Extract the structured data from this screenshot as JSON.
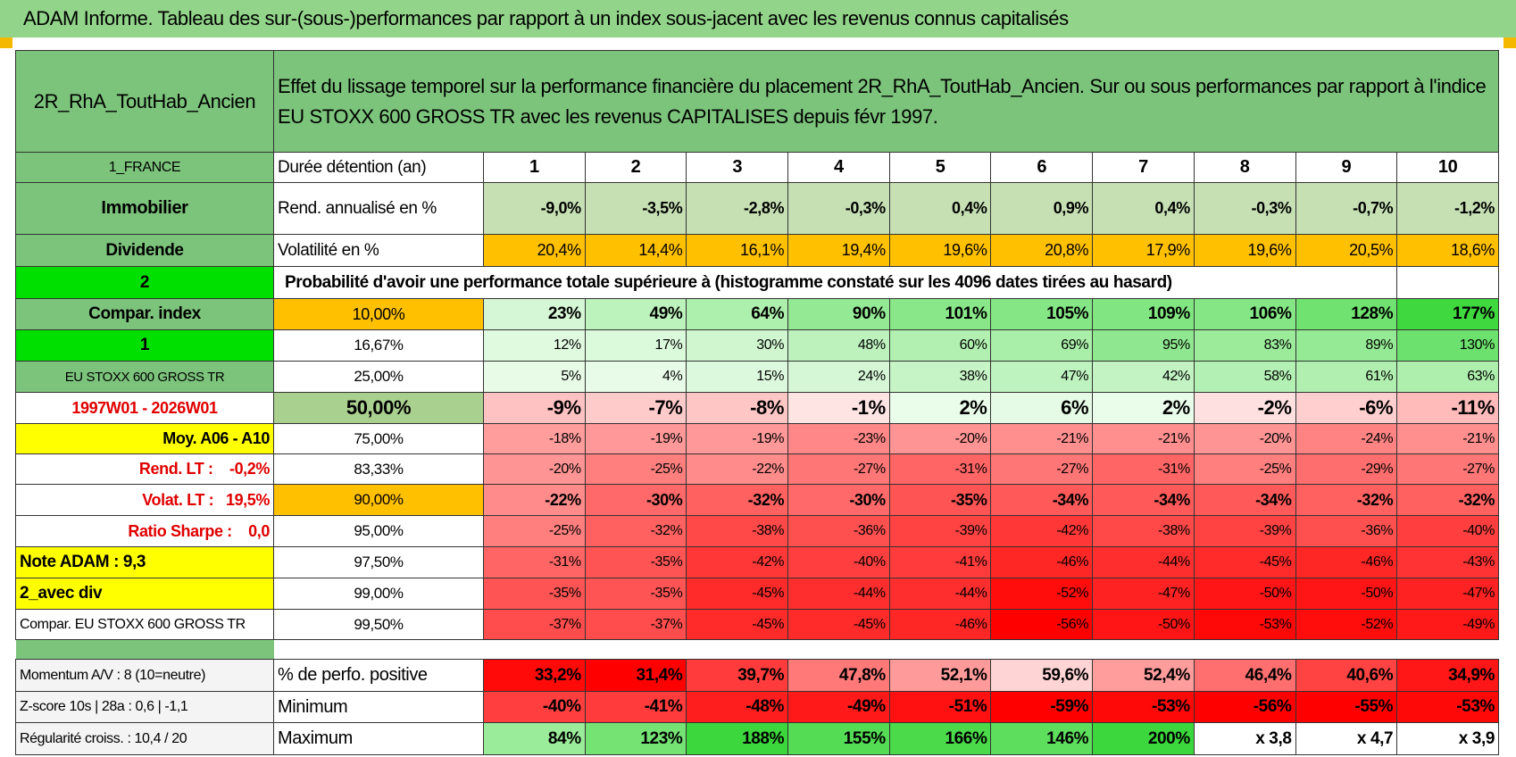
{
  "header": {
    "title": "ADAM Informe. Tableau des sur-(sous-)performances par rapport à un index sous-jacent avec les revenus connus capitalisés"
  },
  "table": {
    "corner": "2R_RhA_ToutHab_Ancien",
    "description": "Effet du lissage temporel sur la performance financière du placement 2R_RhA_ToutHab_Ancien. Sur ou sous performances par rapport à l'indice EU STOXX 600 GROSS TR avec les revenus CAPITALISES depuis févr 1997.",
    "rows": [
      {
        "label": "1_FRANCE",
        "col1": "Durée détention (an)",
        "cells": [
          1,
          2,
          3,
          4,
          5,
          6,
          7,
          8,
          9,
          10
        ]
      },
      {
        "label": "Immobilier",
        "col1": "Rend. annualisé en %",
        "cells": [
          "-9,0%",
          "-3,5%",
          "-2,8%",
          "-0,3%",
          "0,4%",
          "0,9%",
          "0,4%",
          "-0,3%",
          "-0,7%",
          "-1,2%"
        ]
      },
      {
        "label": "Dividende",
        "col1": "Volatilité en %",
        "cells": [
          "20,4%",
          "14,4%",
          "16,1%",
          "19,4%",
          "19,6%",
          "20,8%",
          "17,9%",
          "19,6%",
          "20,5%",
          "18,6%"
        ]
      },
      {
        "label": "2",
        "span_text": "Probabilité d'avoir une performance totale supérieure à (histogramme constaté sur les 4096 dates tirées au hasard)"
      },
      {
        "label": "Compar. index",
        "col1": "10,00%",
        "cells": [
          "23%",
          "49%",
          "64%",
          "90%",
          "101%",
          "105%",
          "109%",
          "106%",
          "128%",
          "177%"
        ]
      },
      {
        "label": "1",
        "col1": "16,67%",
        "cells": [
          "12%",
          "17%",
          "30%",
          "48%",
          "60%",
          "69%",
          "95%",
          "83%",
          "89%",
          "130%"
        ]
      },
      {
        "label": "EU STOXX 600 GROSS TR",
        "col1": "25,00%",
        "cells": [
          "5%",
          "4%",
          "15%",
          "24%",
          "38%",
          "47%",
          "42%",
          "58%",
          "61%",
          "63%"
        ]
      },
      {
        "label": "1997W01 - 2026W01",
        "col1": "50,00%",
        "cells": [
          "-9%",
          "-7%",
          "-8%",
          "-1%",
          "2%",
          "6%",
          "2%",
          "-2%",
          "-6%",
          "-11%"
        ]
      },
      {
        "label": "Moy. A06 - A10",
        "col1": "75,00%",
        "cells": [
          "-18%",
          "-19%",
          "-19%",
          "-23%",
          "-20%",
          "-21%",
          "-21%",
          "-20%",
          "-24%",
          "-21%"
        ]
      },
      {
        "label": "Rend. LT :    -0,2%",
        "col1": "83,33%",
        "cells": [
          "-20%",
          "-25%",
          "-22%",
          "-27%",
          "-31%",
          "-27%",
          "-31%",
          "-25%",
          "-29%",
          "-27%"
        ]
      },
      {
        "label": "Volat. LT :   19,5%",
        "col1": "90,00%",
        "cells": [
          "-22%",
          "-30%",
          "-32%",
          "-30%",
          "-35%",
          "-34%",
          "-34%",
          "-34%",
          "-32%",
          "-32%"
        ]
      },
      {
        "label": "Ratio Sharpe :    0,0",
        "col1": "95,00%",
        "cells": [
          "-25%",
          "-32%",
          "-38%",
          "-36%",
          "-39%",
          "-42%",
          "-38%",
          "-39%",
          "-36%",
          "-40%"
        ]
      },
      {
        "label": "Note ADAM : 9,3",
        "col1": "97,50%",
        "cells": [
          "-31%",
          "-35%",
          "-42%",
          "-40%",
          "-41%",
          "-46%",
          "-44%",
          "-45%",
          "-46%",
          "-43%"
        ]
      },
      {
        "label": "2_avec div",
        "col1": "99,00%",
        "cells": [
          "-35%",
          "-35%",
          "-45%",
          "-44%",
          "-44%",
          "-52%",
          "-47%",
          "-50%",
          "-50%",
          "-47%"
        ]
      },
      {
        "label": "Compar. EU STOXX 600 GROSS TR",
        "col1": "99,50%",
        "cells": [
          "-37%",
          "-37%",
          "-45%",
          "-45%",
          "-46%",
          "-56%",
          "-50%",
          "-53%",
          "-52%",
          "-49%"
        ]
      }
    ],
    "footer_rows": [
      {
        "label": "Momentum A/V : 8 (10=neutre)",
        "col1": "% de perfo. positive",
        "cells": [
          "33,2%",
          "31,4%",
          "39,7%",
          "47,8%",
          "52,1%",
          "59,6%",
          "52,4%",
          "46,4%",
          "40,6%",
          "34,9%"
        ]
      },
      {
        "label": "Z-score 10s | 28a : 0,6 | -1,1",
        "col1": "Minimum",
        "cells": [
          "-40%",
          "-41%",
          "-48%",
          "-49%",
          "-51%",
          "-59%",
          "-53%",
          "-56%",
          "-55%",
          "-53%"
        ]
      },
      {
        "label": "Régularité croiss. : 10,4 / 20",
        "col1": "Maximum",
        "cells": [
          "84%",
          "123%",
          "188%",
          "155%",
          "166%",
          "146%",
          "200%",
          "x 3,8",
          "x 4,7",
          "x 3,9"
        ]
      }
    ]
  }
}
